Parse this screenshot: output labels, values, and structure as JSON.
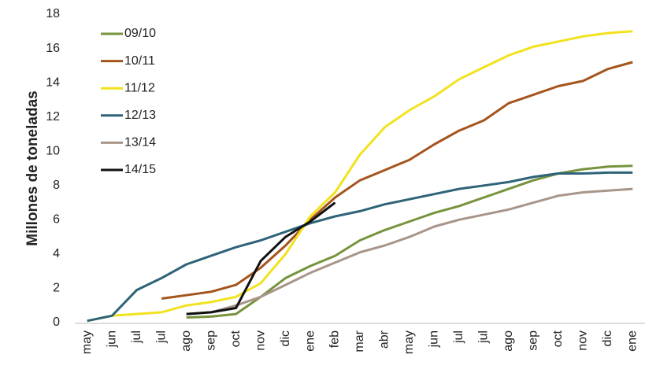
{
  "chart_data": {
    "type": "line",
    "y_label": "Millones de toneladas",
    "categories": [
      "may",
      "jun",
      "jul",
      "jul",
      "ago",
      "sep",
      "oct",
      "nov",
      "dic",
      "ene",
      "feb",
      "mar",
      "abr",
      "may",
      "jun",
      "jul",
      "jul",
      "ago",
      "sep",
      "oct",
      "nov",
      "dic",
      "ene"
    ],
    "ylim": [
      0,
      18
    ],
    "yticks": [
      0,
      2,
      4,
      6,
      8,
      10,
      12,
      14,
      16,
      18
    ],
    "grid": false,
    "legend": "upper left",
    "series": [
      {
        "name": "09/10",
        "color": "#77933c",
        "values": [
          null,
          null,
          null,
          null,
          0.3,
          0.35,
          0.5,
          1.5,
          2.6,
          3.3,
          3.9,
          4.8,
          5.4,
          5.9,
          6.4,
          6.8,
          7.3,
          7.8,
          8.3,
          8.7,
          8.95,
          9.1,
          9.15
        ]
      },
      {
        "name": "10/11",
        "color": "#a5541c",
        "values": [
          null,
          null,
          null,
          1.4,
          1.6,
          1.8,
          2.2,
          3.2,
          4.5,
          6.0,
          7.3,
          8.3,
          8.9,
          9.5,
          10.4,
          11.2,
          11.8,
          12.8,
          13.3,
          13.8,
          14.1,
          14.8,
          15.2
        ]
      },
      {
        "name": "11/12",
        "color": "#f2e21e",
        "values": [
          0.1,
          0.4,
          0.5,
          0.6,
          1.0,
          1.2,
          1.5,
          2.3,
          4.0,
          6.2,
          7.6,
          9.8,
          11.4,
          12.4,
          13.2,
          14.2,
          14.9,
          15.6,
          16.1,
          16.4,
          16.7,
          16.9,
          17.0
        ]
      },
      {
        "name": "12/13",
        "color": "#2e6378",
        "values": [
          0.1,
          0.4,
          1.9,
          2.6,
          3.4,
          3.9,
          4.4,
          4.8,
          5.3,
          5.8,
          6.2,
          6.5,
          6.9,
          7.2,
          7.5,
          7.8,
          8.0,
          8.2,
          8.5,
          8.7,
          8.7,
          8.75,
          8.75
        ]
      },
      {
        "name": "13/14",
        "color": "#a8958a",
        "values": [
          null,
          null,
          null,
          null,
          0.5,
          0.6,
          1.0,
          1.5,
          2.2,
          2.9,
          3.5,
          4.1,
          4.5,
          5.0,
          5.6,
          6.0,
          6.3,
          6.6,
          7.0,
          7.4,
          7.6,
          7.7,
          7.8
        ]
      },
      {
        "name": "14/15",
        "color": "#111111",
        "values": [
          null,
          null,
          null,
          null,
          0.5,
          0.6,
          0.85,
          3.6,
          5.0,
          5.9,
          7.0,
          null,
          null,
          null,
          null,
          null,
          null,
          null,
          null,
          null,
          null,
          null,
          null
        ]
      }
    ]
  }
}
